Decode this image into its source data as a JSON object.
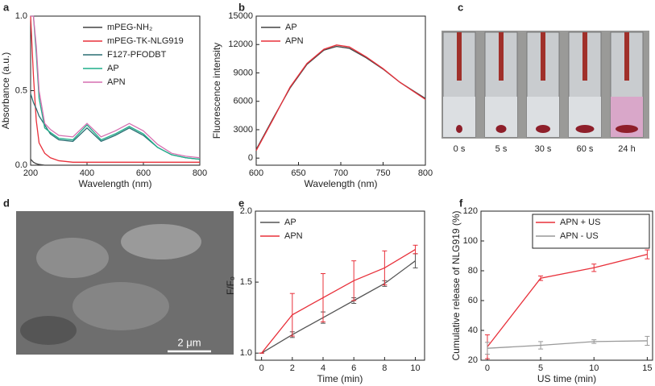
{
  "chart_data": [
    {
      "type": "line",
      "panel": "a",
      "xlabel": "Wavelength (nm)",
      "ylabel": "Absorbance (a.u.)",
      "xlim": [
        200,
        800
      ],
      "ylim": [
        0,
        1
      ],
      "xticks": [
        200,
        400,
        600,
        800
      ],
      "yticks": [
        {
          "value": 0,
          "label": "0.0"
        },
        {
          "value": 0.5,
          "label": "0.5"
        },
        {
          "value": 1,
          "label": "1.0"
        }
      ],
      "legend": "upper right",
      "x": [
        200,
        210,
        220,
        230,
        250,
        270,
        300,
        350,
        400,
        450,
        500,
        550,
        600,
        650,
        700,
        750,
        800
      ],
      "series": [
        {
          "name": "mPEG-NH₂",
          "color": "#444444",
          "values": [
            0.04,
            0.02,
            0.01,
            0.005,
            0,
            0,
            0,
            0,
            0,
            0,
            0,
            0,
            0,
            0,
            0,
            0,
            0
          ]
        },
        {
          "name": "mPEG-TK-NLG919",
          "color": "#e8303a",
          "values": [
            1,
            0.6,
            0.3,
            0.15,
            0.08,
            0.05,
            0.03,
            0.02,
            0.02,
            0.02,
            0.02,
            0.02,
            0.02,
            0.02,
            0.02,
            0.02,
            0.02
          ]
        },
        {
          "name": "F127-PFODBT",
          "color": "#2a6f73",
          "values": [
            0.48,
            0.42,
            0.38,
            0.33,
            0.27,
            0.21,
            0.17,
            0.16,
            0.25,
            0.16,
            0.2,
            0.25,
            0.2,
            0.12,
            0.07,
            0.05,
            0.04
          ]
        },
        {
          "name": "AP",
          "color": "#1fae8a",
          "values": [
            1,
            1,
            0.75,
            0.45,
            0.25,
            0.22,
            0.18,
            0.17,
            0.27,
            0.17,
            0.21,
            0.26,
            0.21,
            0.12,
            0.07,
            0.05,
            0.04
          ]
        },
        {
          "name": "APN",
          "color": "#d66fb0",
          "values": [
            1,
            1,
            0.8,
            0.5,
            0.28,
            0.24,
            0.2,
            0.19,
            0.28,
            0.19,
            0.23,
            0.28,
            0.23,
            0.14,
            0.08,
            0.06,
            0.05
          ]
        }
      ]
    },
    {
      "type": "line",
      "panel": "b",
      "xlabel": "Wavelength (nm)",
      "ylabel": "Fluorescence intensity",
      "xlim": [
        600,
        800
      ],
      "ylim": [
        -750,
        15000
      ],
      "xticks": [
        600,
        650,
        700,
        750,
        800
      ],
      "yticks": [
        0,
        3000,
        6000,
        9000,
        12000,
        15000
      ],
      "legend": "upper left",
      "x": [
        600,
        620,
        640,
        660,
        680,
        695,
        710,
        730,
        750,
        770,
        800
      ],
      "series": [
        {
          "name": "AP",
          "color": "#444444",
          "values": [
            900,
            4200,
            7400,
            9900,
            11400,
            11800,
            11600,
            10600,
            9400,
            8000,
            6300
          ]
        },
        {
          "name": "APN",
          "color": "#e8303a",
          "values": [
            800,
            4100,
            7500,
            10000,
            11500,
            11950,
            11750,
            10700,
            9450,
            8000,
            6200
          ]
        }
      ]
    },
    {
      "type": "line",
      "panel": "e",
      "xlabel": "Time (min)",
      "ylabel": "F/F₀",
      "xlim": [
        -0.4,
        10.6
      ],
      "ylim": [
        0.95,
        2.0
      ],
      "xticks": [
        0,
        2,
        4,
        6,
        8,
        10
      ],
      "yticks": [
        {
          "value": 1,
          "label": "1.0"
        },
        {
          "value": 1.5,
          "label": "1.5"
        },
        {
          "value": 2,
          "label": "2.0"
        }
      ],
      "legend": "upper left",
      "x": [
        0,
        2,
        4,
        6,
        8,
        10
      ],
      "series": [
        {
          "name": "AP",
          "color": "#555555",
          "values": [
            1,
            1.13,
            1.25,
            1.37,
            1.49,
            1.65
          ],
          "errors": [
            0,
            0.02,
            0.04,
            0.02,
            0.02,
            0.05
          ]
        },
        {
          "name": "APN",
          "color": "#e8303a",
          "values": [
            1,
            1.27,
            1.39,
            1.51,
            1.6,
            1.73
          ],
          "errors": [
            0,
            0.15,
            0.17,
            0.14,
            0.12,
            0.03
          ]
        }
      ]
    },
    {
      "type": "line",
      "panel": "f",
      "xlabel": "US time (min)",
      "ylabel": "Cumulative release of NLG919 (%)",
      "xlim": [
        -0.6,
        15.5
      ],
      "ylim": [
        20,
        120
      ],
      "xticks": [
        0,
        5,
        10,
        15
      ],
      "yticks": [
        20,
        40,
        60,
        80,
        100,
        120
      ],
      "legend": "upper right",
      "x": [
        0,
        5,
        10,
        15
      ],
      "series": [
        {
          "name": "APN + US",
          "color": "#e8303a",
          "values": [
            29,
            75,
            82,
            91
          ],
          "errors": [
            8,
            1.5,
            2.5,
            3
          ]
        },
        {
          "name": "APN - US",
          "color": "#999999",
          "values": [
            28,
            30,
            32.5,
            33
          ],
          "errors": [
            4,
            2.5,
            1.2,
            3
          ]
        }
      ]
    }
  ],
  "photo_c": {
    "panel": "c",
    "labels": [
      "0 s",
      "5 s",
      "30 s",
      "60 s",
      "24 h"
    ]
  },
  "photo_d": {
    "panel": "d",
    "scale_bar": "2 μm"
  }
}
